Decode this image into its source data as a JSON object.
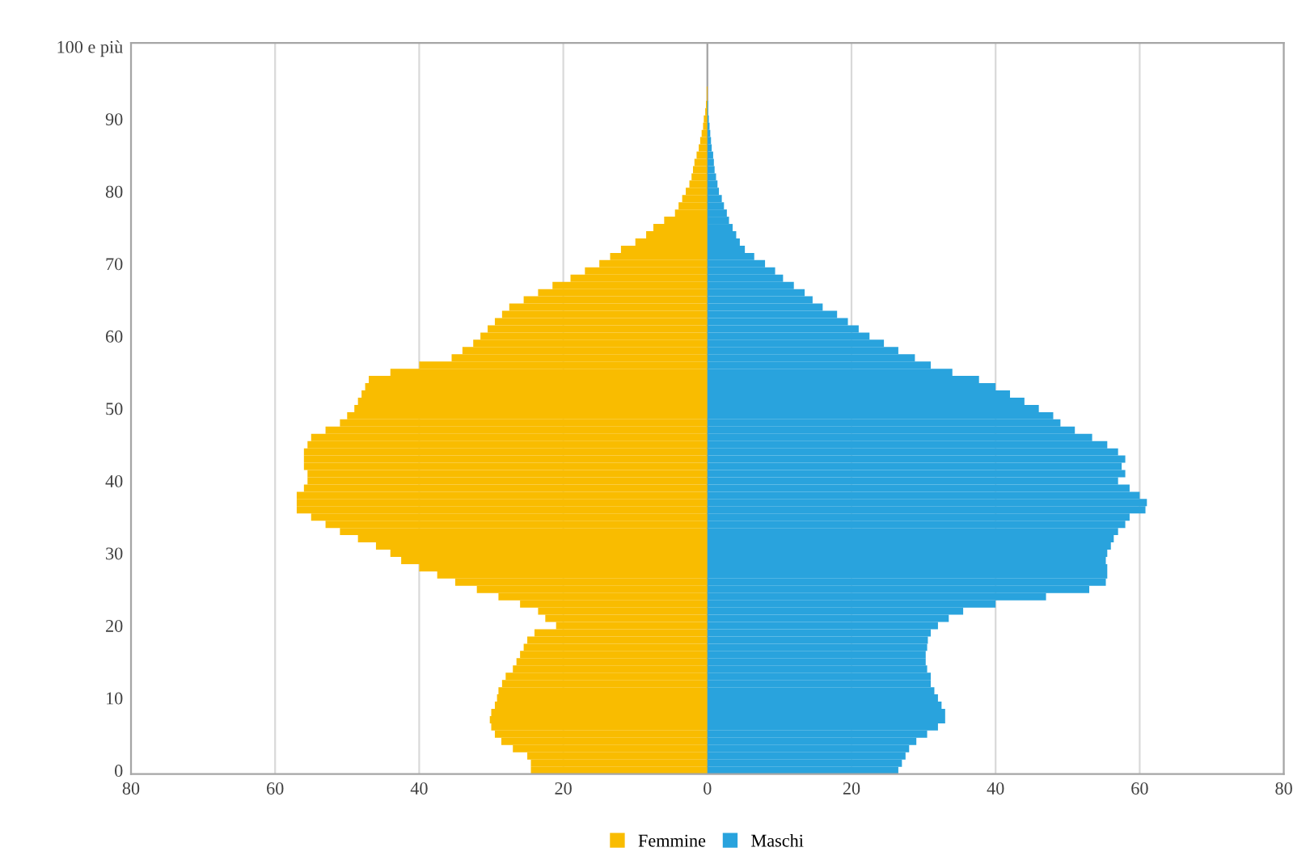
{
  "chart_data": {
    "type": "bar",
    "orientation": "horizontal",
    "categories": [
      "100 e più",
      null,
      null,
      null,
      null,
      null,
      null,
      null,
      null,
      null,
      "90",
      null,
      null,
      null,
      null,
      null,
      null,
      null,
      null,
      null,
      "80",
      null,
      null,
      null,
      null,
      null,
      null,
      null,
      null,
      null,
      "70",
      null,
      null,
      null,
      null,
      null,
      null,
      null,
      null,
      null,
      "60",
      null,
      null,
      null,
      null,
      null,
      null,
      null,
      null,
      null,
      "50",
      null,
      null,
      null,
      null,
      null,
      null,
      null,
      null,
      null,
      "40",
      null,
      null,
      null,
      null,
      null,
      null,
      null,
      null,
      null,
      "30",
      null,
      null,
      null,
      null,
      null,
      null,
      null,
      null,
      null,
      "20",
      null,
      null,
      null,
      null,
      null,
      null,
      null,
      null,
      null,
      "10",
      null,
      null,
      null,
      null,
      null,
      null,
      null,
      null,
      null,
      "0"
    ],
    "series": [
      {
        "name": "Femmine",
        "color": "#f9bc00",
        "values": [
          0,
          0,
          0,
          0,
          0,
          0,
          -0.1,
          -0.1,
          -0.2,
          -0.3,
          -0.5,
          -0.6,
          -0.8,
          -1,
          -1.2,
          -1.5,
          -1.8,
          -2,
          -2.2,
          -2.5,
          -3,
          -3.5,
          -4,
          -4.5,
          -6,
          -7.5,
          -8.5,
          -10,
          -12,
          -13.5,
          -15,
          -17,
          -19,
          -21.5,
          -23.5,
          -25.5,
          -27.5,
          -28.5,
          -29.5,
          -30.5,
          -31.5,
          -32.5,
          -34,
          -35.5,
          -40,
          -44,
          -47,
          -47.5,
          -48,
          -48.5,
          -49,
          -50,
          -51,
          -53,
          -55,
          -55.5,
          -56,
          -56,
          -56,
          -55.5,
          -55.5,
          -56,
          -57,
          -57,
          -57,
          -55,
          -53,
          -51,
          -48.5,
          -46,
          -44,
          -42.5,
          -40,
          -37.5,
          -35,
          -32,
          -29,
          -26,
          -23.5,
          -22.5,
          -21,
          -24,
          -25,
          -25.5,
          -26,
          -26.5,
          -27,
          -28,
          -28.5,
          -29,
          -29.2,
          -29.5,
          -30,
          -30.2,
          -30,
          -29.5,
          -28.6,
          -27,
          -25,
          -24.5,
          -24.5
        ]
      },
      {
        "name": "Maschi",
        "color": "#29a3dd",
        "values": [
          0,
          0,
          0,
          0,
          0,
          0,
          0,
          0,
          0.1,
          0.1,
          0.2,
          0.3,
          0.4,
          0.5,
          0.6,
          0.8,
          0.9,
          1,
          1.2,
          1.4,
          1.6,
          2,
          2.3,
          2.7,
          3,
          3.5,
          4,
          4.5,
          5.2,
          6.5,
          8,
          9.4,
          10.5,
          12,
          13.5,
          14.6,
          16,
          18,
          19.5,
          21,
          22.5,
          24.5,
          26.5,
          28.8,
          31,
          34,
          37.7,
          40,
          42,
          44,
          46,
          48,
          49,
          51,
          53.4,
          55.5,
          57,
          58,
          57.5,
          58,
          57,
          58.6,
          60,
          61,
          60.8,
          58.6,
          58,
          57,
          56.4,
          56,
          55.5,
          55.3,
          55.5,
          55.5,
          55.3,
          53,
          47,
          40,
          35.5,
          33.5,
          32,
          31,
          30.6,
          30.5,
          30.3,
          30.3,
          30.5,
          31,
          31,
          31.5,
          32,
          32.5,
          33,
          33,
          32,
          30.5,
          29,
          28,
          27.5,
          27,
          26.5
        ]
      }
    ],
    "xlim": [
      -80,
      80
    ],
    "xticks": [
      {
        "value": -80,
        "label": "80"
      },
      {
        "value": -60,
        "label": "60"
      },
      {
        "value": -40,
        "label": "40"
      },
      {
        "value": -20,
        "label": "20"
      },
      0,
      20,
      40,
      60,
      80
    ],
    "grid": "x",
    "legend": "bottom",
    "stacked": true
  }
}
